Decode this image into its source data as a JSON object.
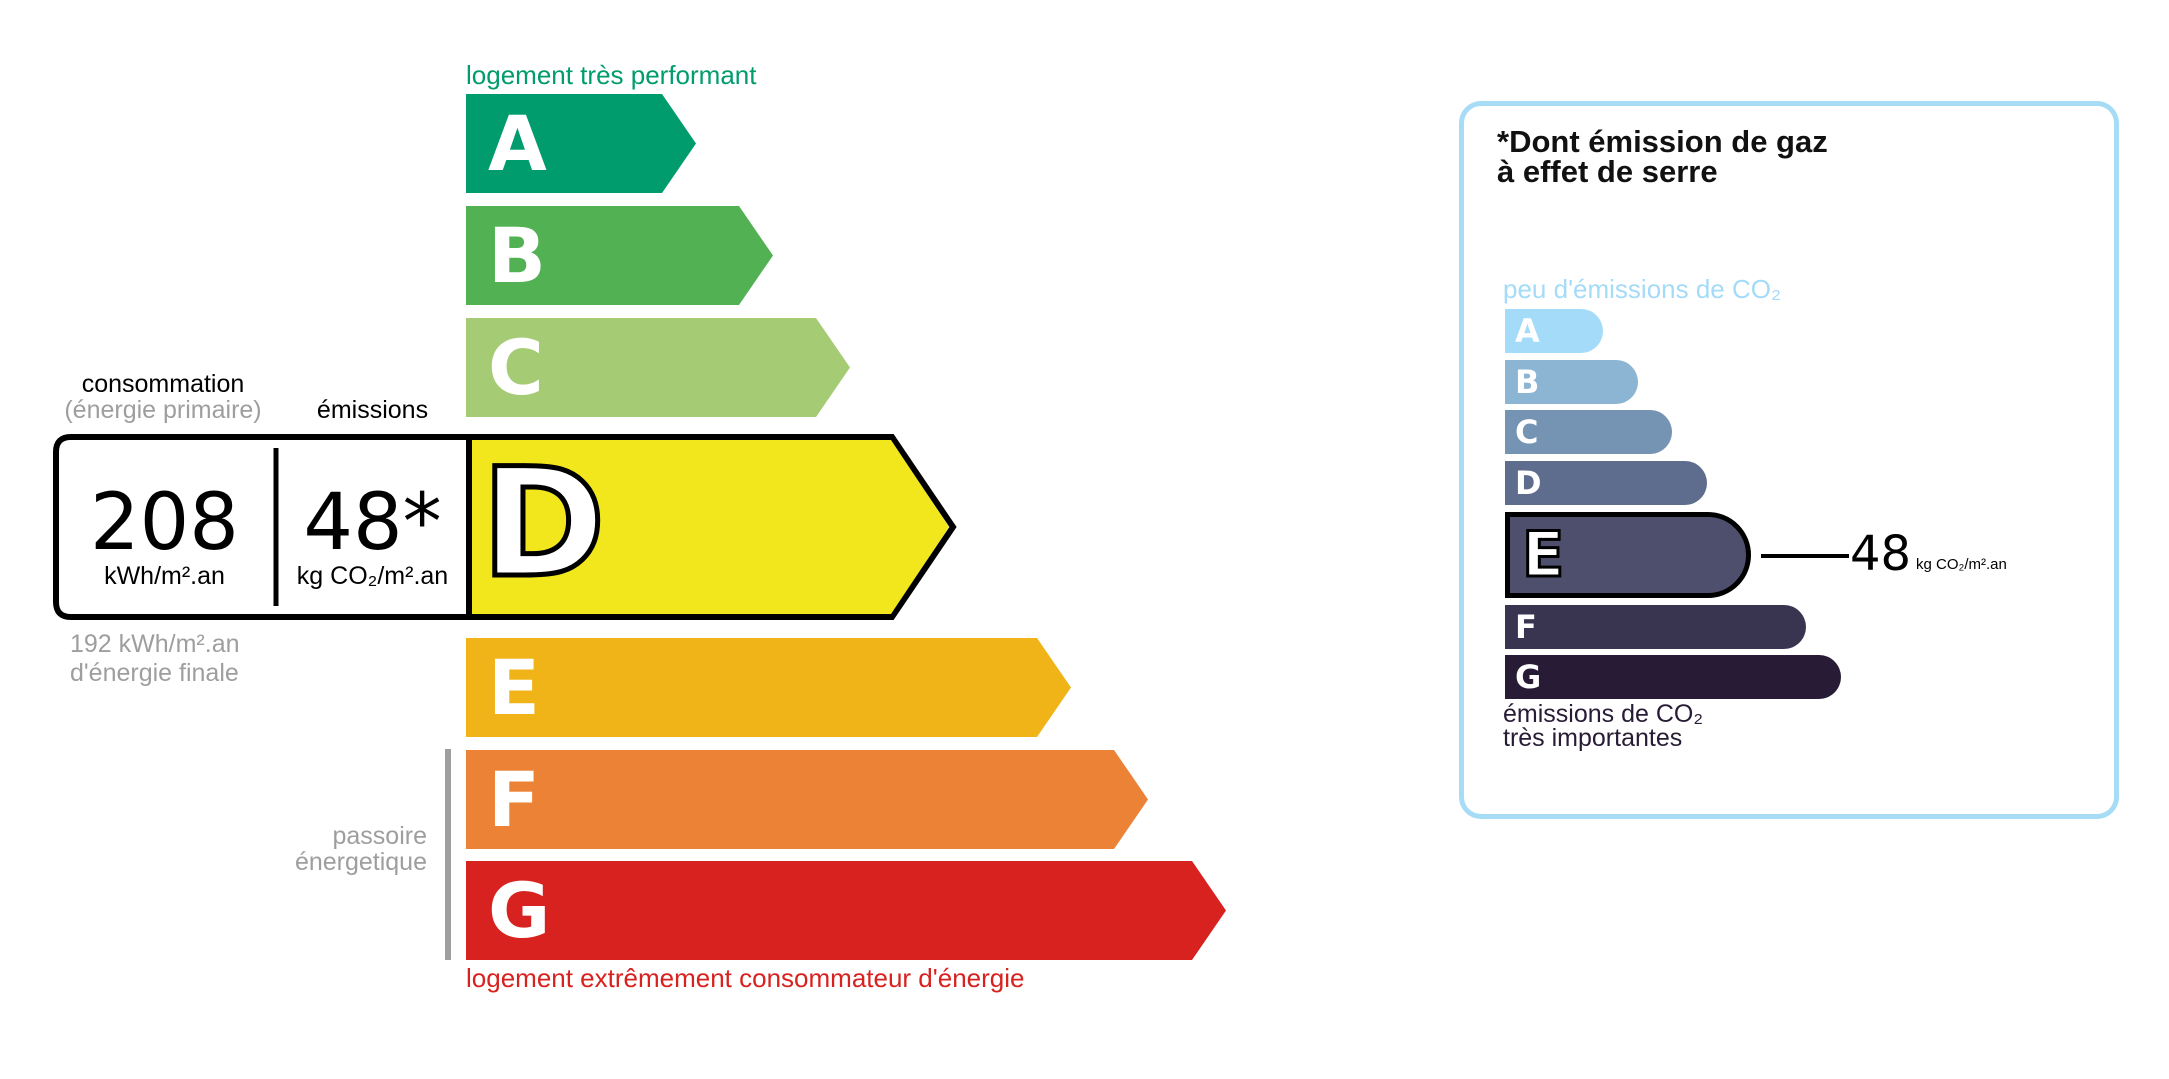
{
  "energy": {
    "top_label": "logement très performant",
    "bottom_label": "logement extrêmement consommateur d'énergie",
    "passoire_label_1": "passoire",
    "passoire_label_2": "énergetique",
    "consumption_label": "consommation",
    "consumption_sub": "(énergie primaire)",
    "emissions_label": "émissions",
    "consumption_value": "208",
    "consumption_unit": "kWh/m².an",
    "emissions_value": "48*",
    "emissions_unit": "kg CO₂/m².an",
    "final_energy_1": "192 kWh/m².an",
    "final_energy_2": "d'énergie finale",
    "current_class": "D",
    "classes": [
      {
        "letter": "A",
        "color": "#009c6d"
      },
      {
        "letter": "B",
        "color": "#52b153"
      },
      {
        "letter": "C",
        "color": "#a5cc74"
      },
      {
        "letter": "D",
        "color": "#f2e61c"
      },
      {
        "letter": "E",
        "color": "#f0b418"
      },
      {
        "letter": "F",
        "color": "#eb8235"
      },
      {
        "letter": "G",
        "color": "#d7221f"
      }
    ]
  },
  "ghg": {
    "title_1": "*Dont émission de gaz",
    "title_2": "à effet de serre",
    "top_label": "peu d'émissions de CO₂",
    "bottom_label_1": "émissions de CO₂",
    "bottom_label_2": "très importantes",
    "current_class": "E",
    "value": "48",
    "unit": "kg CO₂/m².an",
    "classes": [
      {
        "letter": "A",
        "color": "#a4dbf8"
      },
      {
        "letter": "B",
        "color": "#8cb4d3"
      },
      {
        "letter": "C",
        "color": "#7593b3"
      },
      {
        "letter": "D",
        "color": "#5e6d8e"
      },
      {
        "letter": "E",
        "color": "#4d4f6c"
      },
      {
        "letter": "F",
        "color": "#393551"
      },
      {
        "letter": "G",
        "color": "#281b35"
      }
    ]
  }
}
